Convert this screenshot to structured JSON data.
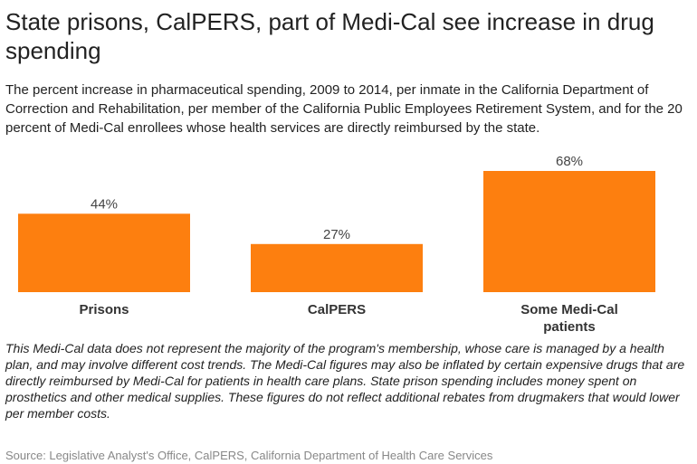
{
  "title": "State prisons, CalPERS, part of Medi-Cal see increase in drug spending",
  "subtitle": "The percent increase in pharmaceutical spending, 2009 to 2014, per inmate in the California Department of Correction and Rehabilitation, per member of the California Public Employees Retirement System, and for the 20 percent of Medi-Cal enrollees whose health services are directly reimbursed by the state.",
  "note": "This Medi-Cal data does not represent the majority of the program's membership, whose care is managed by a health plan, and may involve different cost trends. The Medi-Cal figures may also be inflated by certain expensive drugs that are directly reimbursed by Medi-Cal for patients in health care plans. State prison spending includes money spent on prosthetics and other medical supplies. These figures do not reflect additional rebates from drugmakers that would lower per member costs.",
  "source": "Source: Legislative Analyst's Office, CalPERS, California Department of Health Care Services",
  "chart_data": {
    "type": "bar",
    "categories": [
      "Prisons",
      "CalPERS",
      "Some Medi-Cal patients"
    ],
    "values": [
      44,
      27,
      68
    ],
    "data_labels": [
      "44%",
      "27%",
      "68%"
    ],
    "bar_color": "#fd7f0f",
    "grid": false,
    "ylim": [
      0,
      68
    ]
  }
}
